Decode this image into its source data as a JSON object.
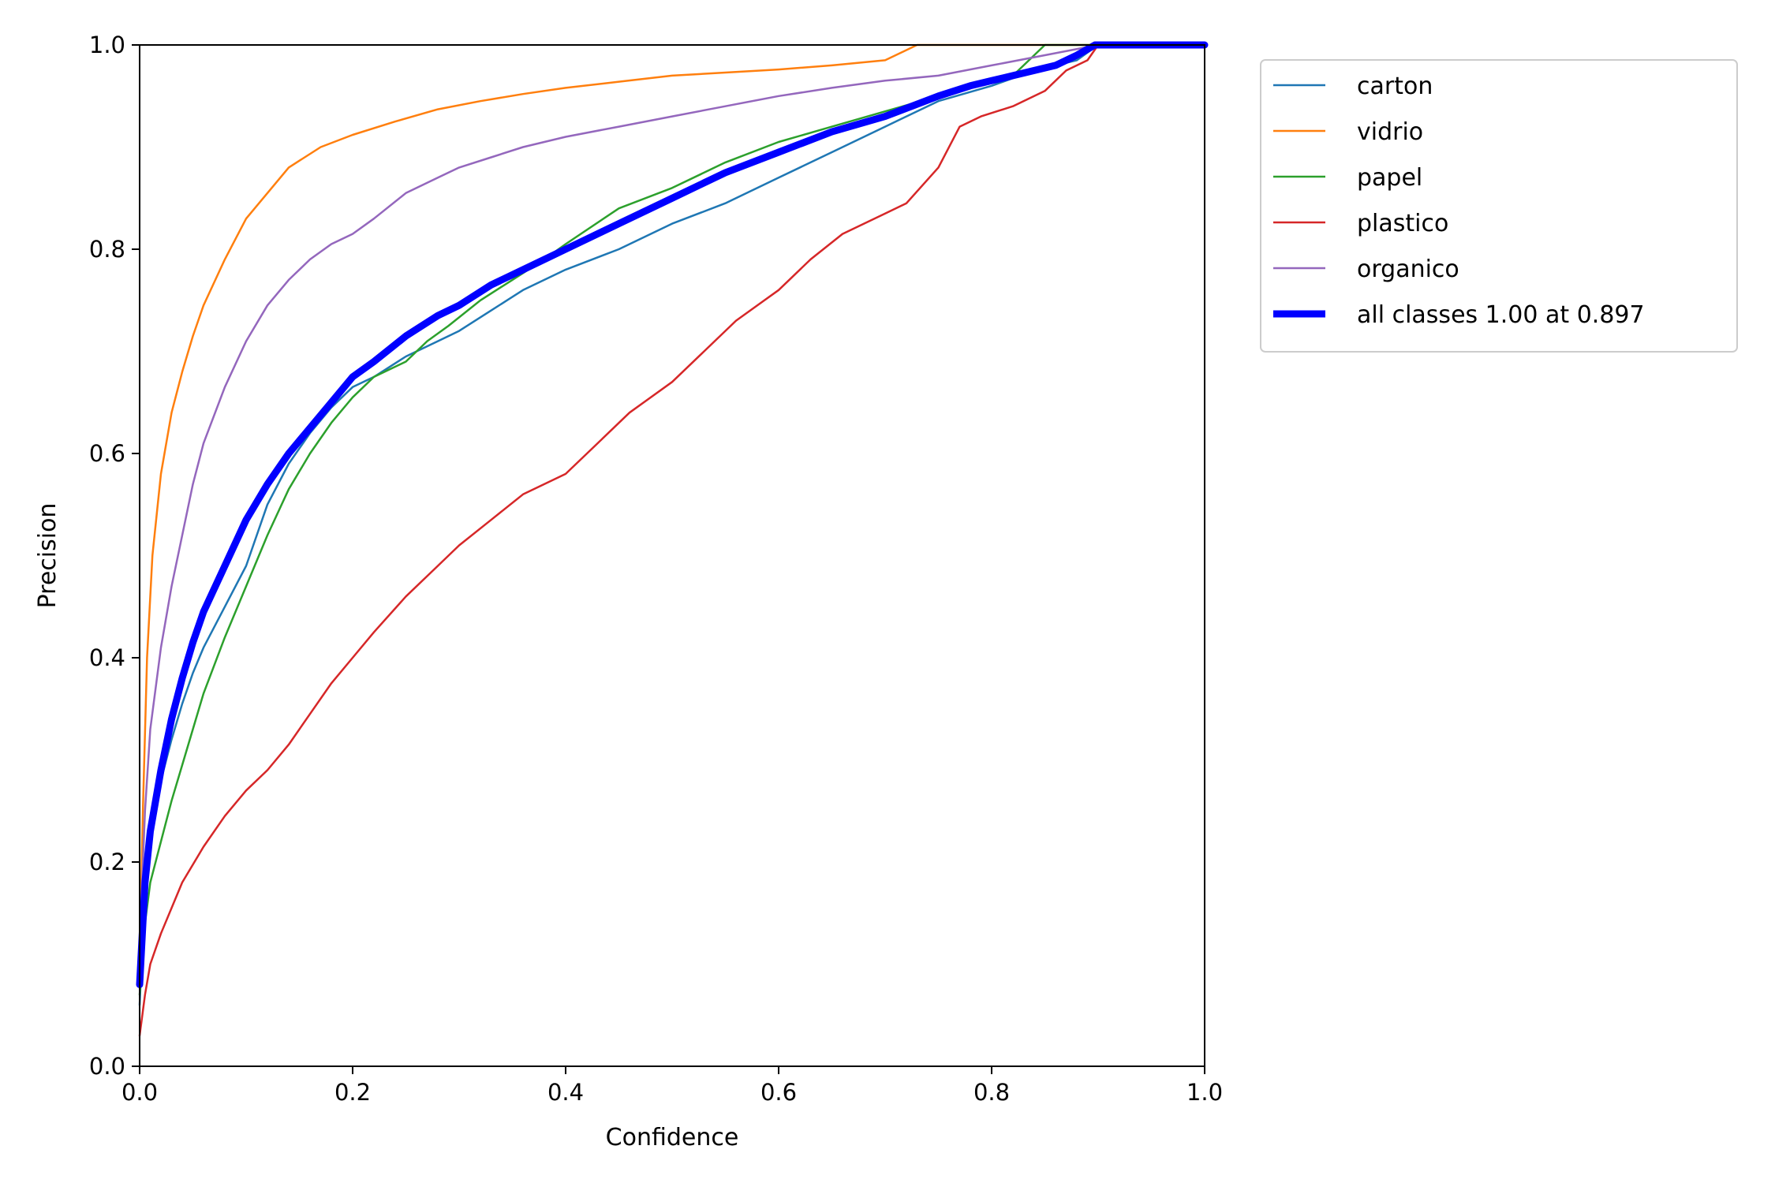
{
  "chart_data": {
    "type": "line",
    "title": "",
    "xlabel": "Confidence",
    "ylabel": "Precision",
    "xlim": [
      0.0,
      1.0
    ],
    "ylim": [
      0.0,
      1.0
    ],
    "x_ticks": [
      "0.0",
      "0.2",
      "0.4",
      "0.6",
      "0.8",
      "1.0"
    ],
    "y_ticks": [
      "0.0",
      "0.2",
      "0.4",
      "0.6",
      "0.8",
      "1.0"
    ],
    "grid": false,
    "legend_position": "outside-top-right",
    "series": [
      {
        "name": "carton",
        "color": "#1f77b4",
        "x": [
          0.0,
          0.005,
          0.01,
          0.02,
          0.03,
          0.04,
          0.05,
          0.06,
          0.08,
          0.1,
          0.12,
          0.14,
          0.16,
          0.18,
          0.2,
          0.22,
          0.25,
          0.28,
          0.3,
          0.33,
          0.36,
          0.4,
          0.45,
          0.5,
          0.55,
          0.6,
          0.65,
          0.7,
          0.75,
          0.8,
          0.84,
          0.86,
          0.88,
          0.9,
          0.95,
          1.0
        ],
        "y": [
          0.06,
          0.17,
          0.22,
          0.28,
          0.32,
          0.355,
          0.385,
          0.41,
          0.45,
          0.49,
          0.55,
          0.59,
          0.62,
          0.645,
          0.665,
          0.675,
          0.695,
          0.71,
          0.72,
          0.74,
          0.76,
          0.78,
          0.8,
          0.825,
          0.845,
          0.87,
          0.895,
          0.92,
          0.945,
          0.96,
          0.975,
          0.98,
          0.985,
          1.0,
          1.0,
          1.0
        ]
      },
      {
        "name": "vidrio",
        "color": "#ff7f0e",
        "x": [
          0.0,
          0.003,
          0.007,
          0.012,
          0.02,
          0.03,
          0.04,
          0.05,
          0.06,
          0.08,
          0.1,
          0.12,
          0.14,
          0.17,
          0.2,
          0.24,
          0.28,
          0.32,
          0.36,
          0.4,
          0.45,
          0.5,
          0.55,
          0.6,
          0.65,
          0.7,
          0.73,
          0.76,
          0.8,
          0.9,
          1.0
        ],
        "y": [
          0.1,
          0.25,
          0.4,
          0.5,
          0.58,
          0.64,
          0.68,
          0.715,
          0.745,
          0.79,
          0.83,
          0.855,
          0.88,
          0.9,
          0.912,
          0.925,
          0.937,
          0.945,
          0.952,
          0.958,
          0.964,
          0.97,
          0.973,
          0.976,
          0.98,
          0.985,
          1.0,
          1.0,
          1.0,
          1.0,
          1.0
        ]
      },
      {
        "name": "papel",
        "color": "#2ca02c",
        "x": [
          0.0,
          0.005,
          0.01,
          0.02,
          0.03,
          0.04,
          0.05,
          0.06,
          0.08,
          0.1,
          0.12,
          0.14,
          0.16,
          0.18,
          0.2,
          0.22,
          0.25,
          0.27,
          0.29,
          0.32,
          0.35,
          0.38,
          0.4,
          0.45,
          0.5,
          0.55,
          0.6,
          0.65,
          0.7,
          0.75,
          0.78,
          0.82,
          0.85,
          0.9,
          0.95,
          1.0
        ],
        "y": [
          0.07,
          0.14,
          0.18,
          0.22,
          0.26,
          0.295,
          0.33,
          0.365,
          0.42,
          0.47,
          0.52,
          0.565,
          0.6,
          0.63,
          0.655,
          0.675,
          0.69,
          0.71,
          0.725,
          0.75,
          0.77,
          0.79,
          0.805,
          0.84,
          0.86,
          0.885,
          0.905,
          0.92,
          0.935,
          0.95,
          0.96,
          0.97,
          1.0,
          1.0,
          1.0,
          1.0
        ]
      },
      {
        "name": "plastico",
        "color": "#d62728",
        "x": [
          0.0,
          0.005,
          0.01,
          0.02,
          0.04,
          0.06,
          0.08,
          0.1,
          0.12,
          0.14,
          0.16,
          0.18,
          0.2,
          0.22,
          0.25,
          0.28,
          0.3,
          0.33,
          0.36,
          0.4,
          0.43,
          0.46,
          0.5,
          0.53,
          0.56,
          0.6,
          0.63,
          0.66,
          0.7,
          0.72,
          0.75,
          0.77,
          0.79,
          0.82,
          0.85,
          0.87,
          0.89,
          0.9,
          0.95,
          1.0
        ],
        "y": [
          0.03,
          0.07,
          0.1,
          0.13,
          0.18,
          0.215,
          0.245,
          0.27,
          0.29,
          0.315,
          0.345,
          0.375,
          0.4,
          0.425,
          0.46,
          0.49,
          0.51,
          0.535,
          0.56,
          0.58,
          0.61,
          0.64,
          0.67,
          0.7,
          0.73,
          0.76,
          0.79,
          0.815,
          0.835,
          0.845,
          0.88,
          0.92,
          0.93,
          0.94,
          0.955,
          0.975,
          0.985,
          1.0,
          1.0,
          1.0
        ]
      },
      {
        "name": "organico",
        "color": "#9467bd",
        "x": [
          0.0,
          0.005,
          0.01,
          0.02,
          0.03,
          0.04,
          0.05,
          0.06,
          0.08,
          0.1,
          0.12,
          0.14,
          0.16,
          0.18,
          0.2,
          0.22,
          0.25,
          0.28,
          0.3,
          0.33,
          0.36,
          0.4,
          0.45,
          0.5,
          0.55,
          0.6,
          0.65,
          0.7,
          0.75,
          0.8,
          0.85,
          0.9,
          0.95,
          1.0
        ],
        "y": [
          0.12,
          0.25,
          0.33,
          0.41,
          0.47,
          0.52,
          0.57,
          0.61,
          0.665,
          0.71,
          0.745,
          0.77,
          0.79,
          0.805,
          0.815,
          0.83,
          0.855,
          0.87,
          0.88,
          0.89,
          0.9,
          0.91,
          0.92,
          0.93,
          0.94,
          0.95,
          0.958,
          0.965,
          0.97,
          0.98,
          0.99,
          1.0,
          1.0,
          1.0
        ]
      },
      {
        "name": "all classes 1.00 at 0.897",
        "color": "#0000ff",
        "bold": true,
        "x": [
          0.0,
          0.005,
          0.01,
          0.02,
          0.03,
          0.04,
          0.05,
          0.06,
          0.08,
          0.1,
          0.12,
          0.14,
          0.16,
          0.18,
          0.2,
          0.22,
          0.25,
          0.28,
          0.3,
          0.33,
          0.36,
          0.4,
          0.45,
          0.5,
          0.55,
          0.6,
          0.65,
          0.7,
          0.75,
          0.78,
          0.8,
          0.82,
          0.84,
          0.86,
          0.88,
          0.897,
          0.95,
          1.0
        ],
        "y": [
          0.08,
          0.18,
          0.23,
          0.29,
          0.34,
          0.38,
          0.415,
          0.445,
          0.49,
          0.535,
          0.57,
          0.6,
          0.625,
          0.65,
          0.675,
          0.69,
          0.715,
          0.735,
          0.745,
          0.765,
          0.78,
          0.8,
          0.825,
          0.85,
          0.875,
          0.895,
          0.915,
          0.93,
          0.95,
          0.96,
          0.965,
          0.97,
          0.975,
          0.98,
          0.99,
          1.0,
          1.0,
          1.0
        ]
      }
    ]
  }
}
